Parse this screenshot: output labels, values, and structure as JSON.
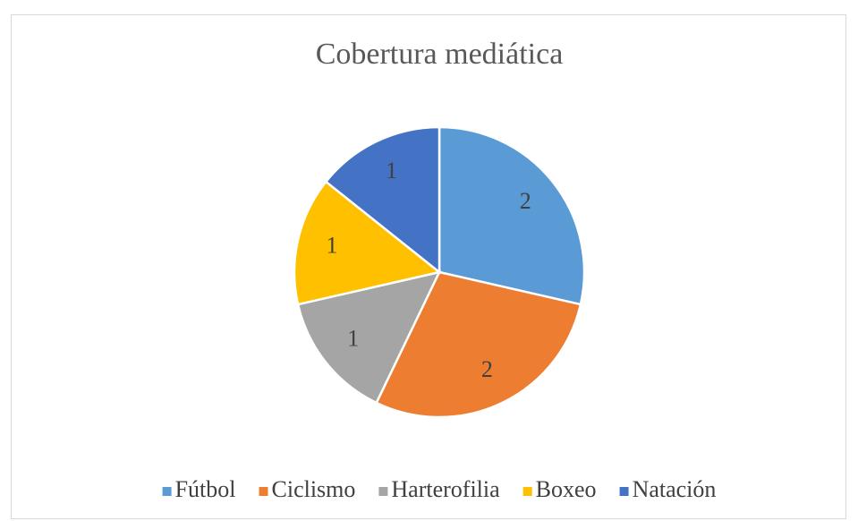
{
  "chart_data": {
    "type": "pie",
    "title": "Cobertura mediática",
    "categories": [
      "Fútbol",
      "Ciclismo",
      "Harterofilia",
      "Boxeo",
      "Natación"
    ],
    "values": [
      2,
      2,
      1,
      1,
      1
    ],
    "colors": [
      "#5b9bd5",
      "#ed7d31",
      "#a5a5a5",
      "#ffc000",
      "#4472c4"
    ],
    "legend": "bottom"
  }
}
